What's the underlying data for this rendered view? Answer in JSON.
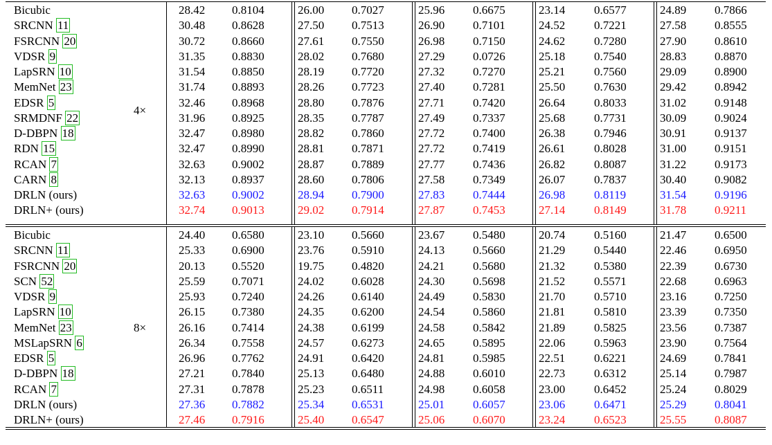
{
  "groups": [
    {
      "scale": "4×",
      "rows": [
        {
          "method": "Bicubic",
          "cite": "",
          "suffix": "",
          "values": [
            "28.42",
            "0.8104",
            "26.00",
            "0.7027",
            "25.96",
            "0.6675",
            "23.14",
            "0.6577",
            "24.89",
            "0.7866"
          ],
          "highlight": ""
        },
        {
          "method": "SRCNN",
          "cite": "11",
          "suffix": "",
          "values": [
            "30.48",
            "0.8628",
            "27.50",
            "0.7513",
            "26.90",
            "0.7101",
            "24.52",
            "0.7221",
            "27.58",
            "0.8555"
          ],
          "highlight": ""
        },
        {
          "method": "FSRCNN",
          "cite": "20",
          "suffix": "",
          "values": [
            "30.72",
            "0.8660",
            "27.61",
            "0.7550",
            "26.98",
            "0.7150",
            "24.62",
            "0.7280",
            "27.90",
            "0.8610"
          ],
          "highlight": ""
        },
        {
          "method": "VDSR",
          "cite": "9",
          "suffix": "",
          "values": [
            "31.35",
            "0.8830",
            "28.02",
            "0.7680",
            "27.29",
            "0.0726",
            "25.18",
            "0.7540",
            "28.83",
            "0.8870"
          ],
          "highlight": ""
        },
        {
          "method": "LapSRN",
          "cite": "10",
          "suffix": "",
          "values": [
            "31.54",
            "0.8850",
            "28.19",
            "0.7720",
            "27.32",
            "0.7270",
            "25.21",
            "0.7560",
            "29.09",
            "0.8900"
          ],
          "highlight": ""
        },
        {
          "method": "MemNet",
          "cite": "23",
          "suffix": "",
          "values": [
            "31.74",
            "0.8893",
            "28.26",
            "0.7723",
            "27.40",
            "0.7281",
            "25.50",
            "0.7630",
            "29.42",
            "0.8942"
          ],
          "highlight": ""
        },
        {
          "method": "EDSR",
          "cite": "5",
          "suffix": "",
          "values": [
            "32.46",
            "0.8968",
            "28.80",
            "0.7876",
            "27.71",
            "0.7420",
            "26.64",
            "0.8033",
            "31.02",
            "0.9148"
          ],
          "highlight": ""
        },
        {
          "method": "SRMDNF",
          "cite": "22",
          "suffix": "",
          "values": [
            "31.96",
            "0.8925",
            "28.35",
            "0.7787",
            "27.49",
            "0.7337",
            "25.68",
            "0.7731",
            "30.09",
            "0.9024"
          ],
          "highlight": ""
        },
        {
          "method": "D-DBPN",
          "cite": "18",
          "suffix": "",
          "values": [
            "32.47",
            "0.8980",
            "28.82",
            "0.7860",
            "27.72",
            "0.7400",
            "26.38",
            "0.7946",
            "30.91",
            "0.9137"
          ],
          "highlight": ""
        },
        {
          "method": "RDN",
          "cite": "15",
          "suffix": "",
          "values": [
            "32.47",
            "0.8990",
            "28.81",
            "0.7871",
            "27.72",
            "0.7419",
            "26.61",
            "0.8028",
            "31.00",
            "0.9151"
          ],
          "highlight": ""
        },
        {
          "method": "RCAN",
          "cite": "7",
          "suffix": "",
          "values": [
            "32.63",
            "0.9002",
            "28.87",
            "0.7889",
            "27.77",
            "0.7436",
            "26.82",
            "0.8087",
            "31.22",
            "0.9173"
          ],
          "highlight": ""
        },
        {
          "method": "CARN",
          "cite": "8",
          "suffix": "",
          "values": [
            "32.13",
            "0.8937",
            "28.60",
            "0.7806",
            "27.58",
            "0.7349",
            "26.07",
            "0.7837",
            "30.40",
            "0.9082"
          ],
          "highlight": ""
        },
        {
          "method": "DRLN (ours)",
          "cite": "",
          "suffix": "",
          "values": [
            "32.63",
            "0.9002",
            "28.94",
            "0.7900",
            "27.83",
            "0.7444",
            "26.98",
            "0.8119",
            "31.54",
            "0.9196"
          ],
          "highlight": "blue"
        },
        {
          "method": "DRLN+ (ours)",
          "cite": "",
          "suffix": "",
          "values": [
            "32.74",
            "0.9013",
            "29.02",
            "0.7914",
            "27.87",
            "0.7453",
            "27.14",
            "0.8149",
            "31.78",
            "0.9211"
          ],
          "highlight": "red"
        }
      ]
    },
    {
      "scale": "8×",
      "rows": [
        {
          "method": "Bicubic",
          "cite": "",
          "suffix": "",
          "values": [
            "24.40",
            "0.6580",
            "23.10",
            "0.5660",
            "23.67",
            "0.5480",
            "20.74",
            "0.5160",
            "21.47",
            "0.6500"
          ],
          "highlight": ""
        },
        {
          "method": "SRCNN",
          "cite": "11",
          "suffix": "",
          "values": [
            "25.33",
            "0.6900",
            "23.76",
            "0.5910",
            "24.13",
            "0.5660",
            "21.29",
            "0.5440",
            "22.46",
            "0.6950"
          ],
          "highlight": ""
        },
        {
          "method": "FSRCNN",
          "cite": "20",
          "suffix": "",
          "values": [
            "20.13",
            "0.5520",
            "19.75",
            "0.4820",
            "24.21",
            "0.5680",
            "21.32",
            "0.5380",
            "22.39",
            "0.6730"
          ],
          "highlight": ""
        },
        {
          "method": "SCN",
          "cite": "52",
          "suffix": "",
          "values": [
            "25.59",
            "0.7071",
            "24.02",
            "0.6028",
            "24.30",
            "0.5698",
            "21.52",
            "0.5571",
            "22.68",
            "0.6963"
          ],
          "highlight": ""
        },
        {
          "method": "VDSR",
          "cite": "9",
          "suffix": "",
          "values": [
            "25.93",
            "0.7240",
            "24.26",
            "0.6140",
            "24.49",
            "0.5830",
            "21.70",
            "0.5710",
            "23.16",
            "0.7250"
          ],
          "highlight": ""
        },
        {
          "method": "LapSRN",
          "cite": "10",
          "suffix": "",
          "values": [
            "26.15",
            "0.7380",
            "24.35",
            "0.6200",
            "24.54",
            "0.5860",
            "21.81",
            "0.5810",
            "23.39",
            "0.7350"
          ],
          "highlight": ""
        },
        {
          "method": "MemNet",
          "cite": "23",
          "suffix": "",
          "values": [
            "26.16",
            "0.7414",
            "24.38",
            "0.6199",
            "24.58",
            "0.5842",
            "21.89",
            "0.5825",
            "23.56",
            "0.7387"
          ],
          "highlight": ""
        },
        {
          "method": "MSLapSRN",
          "cite": "6",
          "suffix": "",
          "values": [
            "26.34",
            "0.7558",
            "24.57",
            "0.6273",
            "24.65",
            "0.5895",
            "22.06",
            "0.5963",
            "23.90",
            "0.7564"
          ],
          "highlight": ""
        },
        {
          "method": "EDSR",
          "cite": "5",
          "suffix": "",
          "values": [
            "26.96",
            "0.7762",
            "24.91",
            "0.6420",
            "24.81",
            "0.5985",
            "22.51",
            "0.6221",
            "24.69",
            "0.7841"
          ],
          "highlight": ""
        },
        {
          "method": "D-DBPN",
          "cite": "18",
          "suffix": "",
          "values": [
            "27.21",
            "0.7840",
            "25.13",
            "0.6480",
            "24.88",
            "0.6010",
            "22.73",
            "0.6312",
            "25.14",
            "0.7987"
          ],
          "highlight": ""
        },
        {
          "method": "RCAN",
          "cite": "7",
          "suffix": "",
          "values": [
            "27.31",
            "0.7878",
            "25.23",
            "0.6511",
            "24.98",
            "0.6058",
            "23.00",
            "0.6452",
            "25.24",
            "0.8029"
          ],
          "highlight": ""
        },
        {
          "method": "DRLN (ours)",
          "cite": "",
          "suffix": "",
          "values": [
            "27.36",
            "0.7882",
            "25.34",
            "0.6531",
            "25.01",
            "0.6057",
            "23.06",
            "0.6471",
            "25.29",
            "0.8041"
          ],
          "highlight": "blue"
        },
        {
          "method": "DRLN+ (ours)",
          "cite": "",
          "suffix": "",
          "values": [
            "27.46",
            "0.7916",
            "25.40",
            "0.6547",
            "25.06",
            "0.6070",
            "23.24",
            "0.6523",
            "25.55",
            "0.8087"
          ],
          "highlight": "red"
        }
      ]
    }
  ],
  "colors": {
    "blue": "#1a1aff",
    "red": "#ff1a1a",
    "cite_box": "#22bb22"
  }
}
